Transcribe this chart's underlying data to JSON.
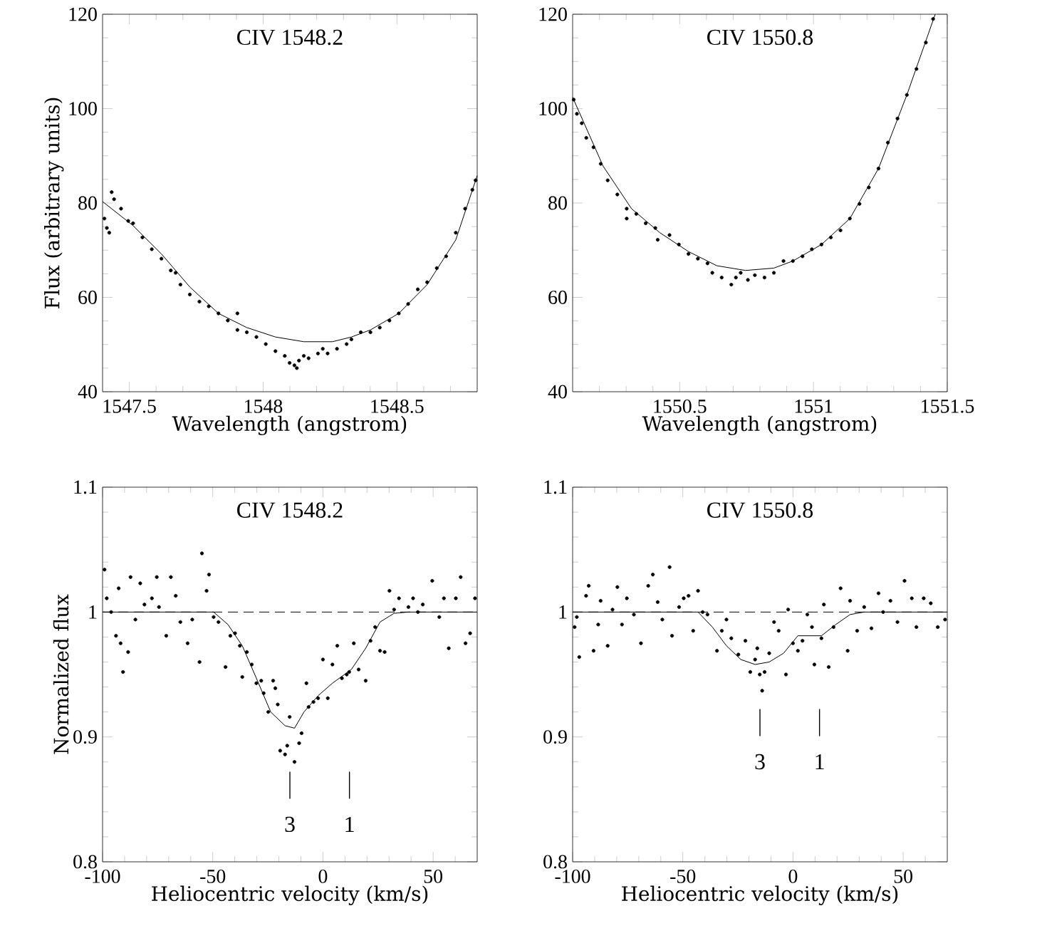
{
  "chart_data": [
    {
      "type": "scatter",
      "title": "CIV 1548.2",
      "xlabel": "Wavelength (angstrom)",
      "ylabel": "Flux (arbitrary units)",
      "xlim": [
        1547.4,
        1548.8
      ],
      "ylim": [
        40,
        120
      ],
      "xticks": [
        1547.5,
        {
          "value": 1547.6,
          "label": null
        },
        {
          "value": 1547.7,
          "label": null
        },
        {
          "value": 1547.8,
          "label": null
        },
        {
          "value": 1547.9,
          "label": null
        },
        1548,
        {
          "value": 1548.1,
          "label": null
        },
        {
          "value": 1548.2,
          "label": null
        },
        {
          "value": 1548.3,
          "label": null
        },
        {
          "value": 1548.4,
          "label": null
        },
        1548.5,
        {
          "value": 1548.6,
          "label": null
        },
        {
          "value": 1548.7,
          "label": null
        }
      ],
      "yticks": [
        40,
        {
          "value": 45,
          "label": null
        },
        {
          "value": 50,
          "label": null
        },
        {
          "value": 55,
          "label": null
        },
        60,
        {
          "value": 65,
          "label": null
        },
        {
          "value": 70,
          "label": null
        },
        {
          "value": 75,
          "label": null
        },
        80,
        {
          "value": 85,
          "label": null
        },
        {
          "value": 90,
          "label": null
        },
        {
          "value": 95,
          "label": null
        },
        100,
        {
          "value": 105,
          "label": null
        },
        {
          "value": 110,
          "label": null
        },
        {
          "value": 115,
          "label": null
        },
        120
      ],
      "series": [
        {
          "marker": "circle",
          "color": "#000000",
          "x": [
            1547.407,
            1547.416,
            1547.425,
            1547.434,
            1547.443,
            1547.469,
            1547.496,
            1547.514,
            1547.549,
            1547.584,
            1547.62,
            1547.655,
            1547.673,
            1547.691,
            1547.726,
            1547.762,
            1547.797,
            1547.833,
            1547.868,
            1547.904,
            1547.904,
            1547.939,
            1547.975,
            1548.01,
            1548.046,
            1548.081,
            1548.099,
            1548.117,
            1548.126,
            1548.134,
            1548.152,
            1548.17,
            1548.205,
            1548.223,
            1548.241,
            1548.276,
            1548.312,
            1548.33,
            1548.365,
            1548.401,
            1548.436,
            1548.472,
            1548.507,
            1548.542,
            1548.578,
            1548.613,
            1548.649,
            1548.684,
            1548.72,
            1548.755,
            1548.782,
            1548.794
          ],
          "values": [
            76.7,
            74.7,
            73.7,
            82.3,
            80.8,
            78.8,
            76.2,
            75.7,
            72.7,
            70.2,
            68.2,
            65.7,
            65.2,
            62.7,
            60.6,
            59.1,
            58.1,
            56.6,
            55.1,
            56.6,
            53.1,
            52.6,
            51.6,
            50.1,
            48.6,
            47.6,
            46.1,
            45.6,
            45.0,
            46.6,
            47.6,
            47.1,
            48.1,
            49.1,
            48.1,
            49.1,
            50.1,
            51.1,
            52.6,
            52.6,
            53.6,
            55.1,
            56.6,
            58.6,
            61.7,
            63.2,
            66.2,
            68.7,
            73.7,
            78.8,
            82.8,
            84.8
          ]
        },
        {
          "type": "line",
          "color": "#000000",
          "x": [
            1547.4,
            1547.514,
            1547.62,
            1547.726,
            1547.833,
            1547.939,
            1548.046,
            1548.152,
            1548.259,
            1548.33,
            1548.401,
            1548.507,
            1548.613,
            1548.72,
            1548.8
          ],
          "values": [
            80.3,
            75.2,
            69.2,
            62.2,
            56.6,
            53.6,
            51.6,
            50.6,
            50.6,
            51.6,
            53.1,
            56.6,
            62.7,
            72.2,
            85.8
          ]
        }
      ]
    },
    {
      "type": "scatter",
      "title": "CIV 1550.8",
      "xlabel": "Wavelength (angstrom)",
      "xlim": [
        1550.1,
        1551.5
      ],
      "ylim": [
        40,
        120
      ],
      "xticks": [
        {
          "value": 1550.2,
          "label": null
        },
        {
          "value": 1550.3,
          "label": null
        },
        {
          "value": 1550.4,
          "label": null
        },
        1550.5,
        {
          "value": 1550.6,
          "label": null
        },
        {
          "value": 1550.7,
          "label": null
        },
        {
          "value": 1550.8,
          "label": null
        },
        {
          "value": 1550.9,
          "label": null
        },
        1551,
        {
          "value": 1551.1,
          "label": null
        },
        {
          "value": 1551.2,
          "label": null
        },
        {
          "value": 1551.3,
          "label": null
        },
        {
          "value": 1551.4,
          "label": null
        },
        1551.5
      ],
      "yticks": [
        40,
        {
          "value": 45,
          "label": null
        },
        {
          "value": 50,
          "label": null
        },
        {
          "value": 55,
          "label": null
        },
        60,
        {
          "value": 65,
          "label": null
        },
        {
          "value": 70,
          "label": null
        },
        {
          "value": 75,
          "label": null
        },
        80,
        {
          "value": 85,
          "label": null
        },
        {
          "value": 90,
          "label": null
        },
        {
          "value": 95,
          "label": null
        },
        100,
        {
          "value": 105,
          "label": null
        },
        {
          "value": 110,
          "label": null
        },
        {
          "value": 115,
          "label": null
        },
        120
      ],
      "series": [
        {
          "marker": "circle",
          "color": "#000000",
          "x": [
            1550.104,
            1550.116,
            1550.134,
            1550.151,
            1550.178,
            1550.205,
            1550.231,
            1550.267,
            1550.302,
            1550.302,
            1550.338,
            1550.373,
            1550.409,
            1550.418,
            1550.462,
            1550.497,
            1550.533,
            1550.568,
            1550.604,
            1550.622,
            1550.657,
            1550.693,
            1550.71,
            1550.728,
            1550.755,
            1550.781,
            1550.817,
            1550.852,
            1550.888,
            1550.923,
            1550.959,
            1550.994,
            1551.03,
            1551.065,
            1551.101,
            1551.136,
            1551.172,
            1551.207,
            1551.243,
            1551.278,
            1551.314,
            1551.349,
            1551.385,
            1551.42,
            1551.447
          ],
          "values": [
            101.9,
            98.9,
            96.9,
            93.8,
            91.8,
            88.3,
            84.8,
            81.8,
            78.8,
            76.7,
            77.7,
            75.7,
            74.7,
            72.2,
            73.2,
            71.2,
            69.2,
            68.2,
            67.2,
            65.2,
            64.2,
            62.7,
            64.2,
            65.2,
            63.7,
            64.7,
            64.2,
            65.2,
            67.7,
            67.7,
            68.7,
            70.2,
            71.2,
            72.7,
            74.2,
            76.7,
            79.8,
            83.3,
            87.3,
            92.8,
            97.9,
            102.9,
            108.4,
            114.0,
            119.0
          ]
        },
        {
          "type": "line",
          "color": "#000000",
          "x": [
            1550.1,
            1550.214,
            1550.32,
            1550.426,
            1550.533,
            1550.639,
            1550.746,
            1550.852,
            1550.923,
            1551.03,
            1551.136,
            1551.243,
            1551.349,
            1551.455
          ],
          "values": [
            102.4,
            87.8,
            78.8,
            73.7,
            69.7,
            66.7,
            65.7,
            66.2,
            67.7,
            71.2,
            76.7,
            87.3,
            102.9,
            120
          ]
        }
      ]
    },
    {
      "type": "scatter",
      "title": "CIV 1548.2",
      "xlabel": "Heliocentric velocity (km/s)",
      "ylabel": "Normalized flux",
      "xlim": [
        -100,
        70
      ],
      "ylim": [
        0.8,
        1.1
      ],
      "xticks": [
        -100,
        {
          "value": -90,
          "label": null
        },
        {
          "value": -80,
          "label": null
        },
        {
          "value": -70,
          "label": null
        },
        {
          "value": -60,
          "label": null
        },
        -50,
        {
          "value": -40,
          "label": null
        },
        {
          "value": -30,
          "label": null
        },
        {
          "value": -20,
          "label": null
        },
        {
          "value": -10,
          "label": null
        },
        0,
        {
          "value": 10,
          "label": null
        },
        {
          "value": 20,
          "label": null
        },
        {
          "value": 30,
          "label": null
        },
        {
          "value": 40,
          "label": null
        },
        50,
        {
          "value": 60,
          "label": null
        }
      ],
      "yticks": [
        0.8,
        {
          "value": 0.82,
          "label": null
        },
        {
          "value": 0.84,
          "label": null
        },
        {
          "value": 0.86,
          "label": null
        },
        {
          "value": 0.88,
          "label": null
        },
        0.9,
        {
          "value": 0.92,
          "label": null
        },
        {
          "value": 0.94,
          "label": null
        },
        {
          "value": 0.96,
          "label": null
        },
        {
          "value": 0.98,
          "label": null
        },
        1,
        {
          "value": 1.02,
          "label": null
        },
        {
          "value": 1.04,
          "label": null
        },
        {
          "value": 1.06,
          "label": null
        },
        {
          "value": 1.08,
          "label": null
        },
        1.1
      ],
      "ref_lines": [
        {
          "axis": "y",
          "value": 1,
          "line_style": "dashed"
        }
      ],
      "annotations": [
        "3",
        "1"
      ],
      "series": [
        {
          "marker": "circle",
          "color": "#000000",
          "x": [
            -99.1,
            -98.1,
            -96.1,
            -93.9,
            -92.7,
            -91.8,
            -90.7,
            -88.4,
            -87.3,
            -85.1,
            -82.9,
            -81.0,
            -77.6,
            -75.4,
            -74.4,
            -71.1,
            -69.0,
            -66.8,
            -64.7,
            -61.4,
            -59.3,
            -56.0,
            -54.9,
            -52.8,
            -51.7,
            -49.6,
            -47.4,
            -44.2,
            -42.0,
            -39.9,
            -37.7,
            -36.6,
            -34.5,
            -32.3,
            -30.2,
            -28.0,
            -26.9,
            -24.8,
            -22.6,
            -21.6,
            -20.5,
            -19.4,
            -17.2,
            -16.2,
            -15.1,
            -12.9,
            -10.8,
            -9.7,
            -7.5,
            -6.5,
            -4.3,
            -2.2,
            0.0,
            2.2,
            4.3,
            6.5,
            8.6,
            10.8,
            11.9,
            14.0,
            16.2,
            19.4,
            21.6,
            23.7,
            25.9,
            28.0,
            30.2,
            32.3,
            34.5,
            38.8,
            40.9,
            43.1,
            45.3,
            49.6,
            52.8,
            54.9,
            57.1,
            60.3,
            62.5,
            64.7,
            66.8,
            69.0
          ],
          "values": [
            1.034,
            1.011,
            1.0,
            0.981,
            1.019,
            0.975,
            0.952,
            0.968,
            1.028,
            0.994,
            1.023,
            1.006,
            1.011,
            1.028,
            1.004,
            0.981,
            1.028,
            1.013,
            0.992,
            0.975,
            0.994,
            0.96,
            1.047,
            1.017,
            1.03,
            0.996,
            0.992,
            0.956,
            0.981,
            0.983,
            0.973,
            0.948,
            0.968,
            0.958,
            0.943,
            0.945,
            0.935,
            0.92,
            0.945,
            0.939,
            0.926,
            0.889,
            0.886,
            0.893,
            0.916,
            0.88,
            0.895,
            0.903,
            0.943,
            0.924,
            0.928,
            0.931,
            0.962,
            0.931,
            0.958,
            0.973,
            0.947,
            0.95,
            0.952,
            0.975,
            0.954,
            0.945,
            0.977,
            0.988,
            0.969,
            0.968,
            1.017,
            1.002,
            1.011,
            1.004,
            1.011,
            1.0,
            1.006,
            1.025,
            0.996,
            1.011,
            0.971,
            1.011,
            1.028,
            0.975,
            0.983,
            1.011
          ]
        },
        {
          "type": "line",
          "color": "#000000",
          "x": [
            -100,
            -55,
            -49.6,
            -43.1,
            -36.6,
            -30.2,
            -23.7,
            -17.2,
            -12.9,
            -8.6,
            -2.2,
            4.3,
            12.9,
            19.4,
            25.9,
            32.3,
            38.8,
            70
          ],
          "values": [
            1,
            1,
            1,
            0.99,
            0.973,
            0.947,
            0.92,
            0.909,
            0.907,
            0.92,
            0.933,
            0.943,
            0.954,
            0.971,
            0.992,
            0.999,
            1,
            1
          ]
        }
      ]
    },
    {
      "type": "scatter",
      "title": "CIV 1550.8",
      "xlabel": "Heliocentric velocity (km/s)",
      "xlim": [
        -100,
        70
      ],
      "ylim": [
        0.8,
        1.1
      ],
      "xticks": [
        -100,
        {
          "value": -90,
          "label": null
        },
        {
          "value": -80,
          "label": null
        },
        {
          "value": -70,
          "label": null
        },
        {
          "value": -60,
          "label": null
        },
        -50,
        {
          "value": -40,
          "label": null
        },
        {
          "value": -30,
          "label": null
        },
        {
          "value": -20,
          "label": null
        },
        {
          "value": -10,
          "label": null
        },
        0,
        {
          "value": 10,
          "label": null
        },
        {
          "value": 20,
          "label": null
        },
        {
          "value": 30,
          "label": null
        },
        {
          "value": 40,
          "label": null
        },
        50,
        {
          "value": 60,
          "label": null
        }
      ],
      "yticks": [
        0.8,
        {
          "value": 0.82,
          "label": null
        },
        {
          "value": 0.84,
          "label": null
        },
        {
          "value": 0.86,
          "label": null
        },
        {
          "value": 0.88,
          "label": null
        },
        0.9,
        {
          "value": 0.92,
          "label": null
        },
        {
          "value": 0.94,
          "label": null
        },
        {
          "value": 0.96,
          "label": null
        },
        {
          "value": 0.98,
          "label": null
        },
        1,
        {
          "value": 1.02,
          "label": null
        },
        {
          "value": 1.04,
          "label": null
        },
        {
          "value": 1.06,
          "label": null
        },
        {
          "value": 1.08,
          "label": null
        },
        1.1
      ],
      "ref_lines": [
        {
          "axis": "y",
          "value": 1,
          "line_style": "dashed"
        }
      ],
      "annotations": [
        "3",
        "1"
      ],
      "series": [
        {
          "marker": "circle",
          "color": "#000000",
          "x": [
            -99.1,
            -98.1,
            -97.0,
            -93.9,
            -92.7,
            -90.5,
            -88.4,
            -87.3,
            -84.1,
            -81.9,
            -79.7,
            -77.6,
            -75.4,
            -72.2,
            -69.0,
            -65.7,
            -63.6,
            -61.4,
            -59.3,
            -56.0,
            -54.9,
            -51.7,
            -49.6,
            -47.4,
            -45.3,
            -43.1,
            -41.0,
            -38.8,
            -34.5,
            -32.3,
            -30.2,
            -28.0,
            -24.8,
            -21.6,
            -19.4,
            -17.2,
            -16.2,
            -15.1,
            -14.0,
            -12.9,
            -10.8,
            -8.6,
            -6.5,
            -3.2,
            -2.2,
            0.0,
            2.2,
            4.3,
            6.5,
            8.6,
            9.7,
            12.9,
            14.0,
            16.2,
            18.4,
            21.6,
            24.8,
            25.9,
            29.1,
            32.3,
            35.6,
            38.8,
            40.9,
            44.2,
            47.4,
            50.6,
            53.9,
            56.0,
            59.3,
            62.5,
            65.7,
            69.0
          ],
          "values": [
            0.988,
            0.996,
            0.964,
            1.013,
            1.021,
            0.969,
            0.99,
            1.009,
            0.973,
            1.002,
            1.02,
            0.99,
            1.011,
            0.998,
            0.975,
            1.021,
            1.03,
            1.008,
            0.994,
            1.036,
            0.981,
            1.004,
            1.011,
            1.013,
            0.985,
            1.017,
            1.0,
            0.998,
            0.969,
            0.985,
            0.994,
            0.979,
            0.966,
            0.977,
            0.952,
            0.962,
            0.971,
            0.95,
            0.937,
            0.952,
            0.967,
            0.992,
            0.985,
            0.95,
            1.002,
            0.975,
            0.969,
            0.977,
            0.998,
            0.988,
            0.958,
            0.979,
            1.006,
            0.956,
            0.988,
            1.019,
            0.969,
            1.009,
            0.985,
            1.004,
            0.987,
            1.015,
            1.0,
            1.009,
            0.992,
            1.025,
            1.011,
            0.988,
            1.011,
            1.007,
            0.988,
            0.994
          ]
        },
        {
          "type": "line",
          "color": "#000000",
          "x": [
            -100,
            -50,
            -43.1,
            -36.6,
            -30.2,
            -23.7,
            -17.2,
            -10.8,
            -4.3,
            2.2,
            12.9,
            19.4,
            25.9,
            32.3,
            70
          ],
          "values": [
            1,
            1,
            1,
            0.988,
            0.973,
            0.962,
            0.958,
            0.96,
            0.967,
            0.981,
            0.981,
            0.99,
            0.998,
            1,
            1
          ]
        }
      ]
    }
  ]
}
